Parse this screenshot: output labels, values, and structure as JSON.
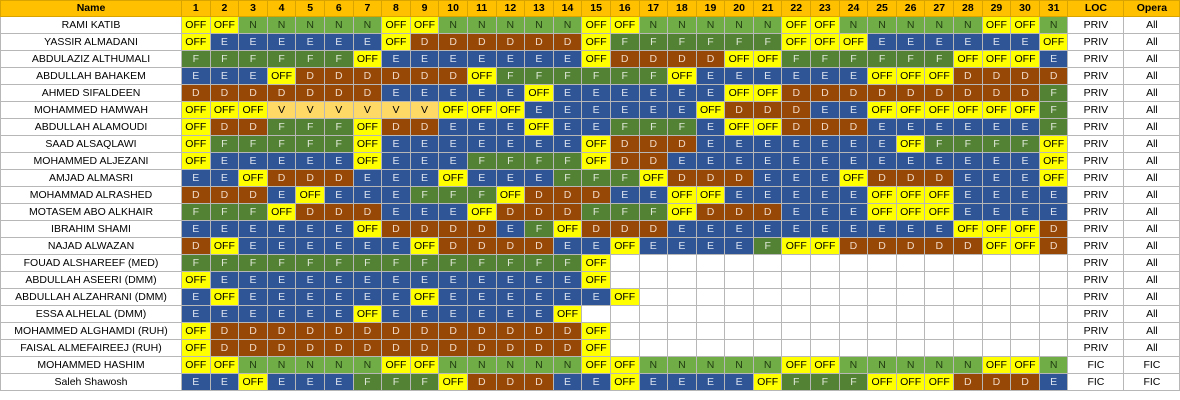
{
  "header": {
    "name": "Name",
    "days": [
      "1",
      "2",
      "3",
      "4",
      "5",
      "6",
      "7",
      "8",
      "9",
      "10",
      "11",
      "12",
      "13",
      "14",
      "15",
      "16",
      "17",
      "18",
      "19",
      "20",
      "21",
      "22",
      "23",
      "24",
      "25",
      "26",
      "27",
      "28",
      "29",
      "30",
      "31"
    ],
    "loc": "LOC",
    "opera": "Opera"
  },
  "colors": {
    "header_bg": "#ffc000",
    "OFF": "#ffff00",
    "E": "#2f5597",
    "F": "#548235",
    "D": "#974706",
    "N": "#70ad47",
    "V": "#ffd966"
  },
  "rows": [
    {
      "name": "RAMI KATIB",
      "shifts": [
        "OFF",
        "OFF",
        "N",
        "N",
        "N",
        "N",
        "N",
        "OFF",
        "OFF",
        "N",
        "N",
        "N",
        "N",
        "N",
        "OFF",
        "OFF",
        "N",
        "N",
        "N",
        "N",
        "N",
        "OFF",
        "OFF",
        "N",
        "N",
        "N",
        "N",
        "N",
        "OFF",
        "OFF",
        "N"
      ],
      "loc": "PRIV",
      "opera": "All"
    },
    {
      "name": "YASSIR ALMADANI",
      "shifts": [
        "OFF",
        "E",
        "E",
        "E",
        "E",
        "E",
        "E",
        "OFF",
        "D",
        "D",
        "D",
        "D",
        "D",
        "D",
        "OFF",
        "F",
        "F",
        "F",
        "F",
        "F",
        "F",
        "OFF",
        "OFF",
        "OFF",
        "E",
        "E",
        "E",
        "E",
        "E",
        "E",
        "OFF"
      ],
      "loc": "PRIV",
      "opera": "All"
    },
    {
      "name": "ABDULAZIZ ALTHUMALI",
      "shifts": [
        "F",
        "F",
        "F",
        "F",
        "F",
        "F",
        "OFF",
        "E",
        "E",
        "E",
        "E",
        "E",
        "E",
        "E",
        "OFF",
        "D",
        "D",
        "D",
        "D",
        "OFF",
        "OFF",
        "F",
        "F",
        "F",
        "F",
        "F",
        "F",
        "OFF",
        "OFF",
        "OFF",
        "E"
      ],
      "loc": "PRIV",
      "opera": "All"
    },
    {
      "name": "ABDULLAH BAHAKEM",
      "shifts": [
        "E",
        "E",
        "E",
        "OFF",
        "D",
        "D",
        "D",
        "D",
        "D",
        "D",
        "OFF",
        "F",
        "F",
        "F",
        "F",
        "F",
        "F",
        "OFF",
        "E",
        "E",
        "E",
        "E",
        "E",
        "E",
        "OFF",
        "OFF",
        "OFF",
        "D",
        "D",
        "D",
        "D"
      ],
      "loc": "PRIV",
      "opera": "All"
    },
    {
      "name": "AHMED SIFALDEEN",
      "shifts": [
        "D",
        "D",
        "D",
        "D",
        "D",
        "D",
        "D",
        "E",
        "E",
        "E",
        "E",
        "E",
        "OFF",
        "E",
        "E",
        "E",
        "E",
        "E",
        "E",
        "OFF",
        "OFF",
        "D",
        "D",
        "D",
        "D",
        "D",
        "D",
        "D",
        "D",
        "D",
        "F"
      ],
      "loc": "PRIV",
      "opera": "All"
    },
    {
      "name": "MOHAMMED HAMWAH",
      "shifts": [
        "OFF",
        "OFF",
        "OFF",
        "V",
        "V",
        "V",
        "V",
        "V",
        "V",
        "OFF",
        "OFF",
        "OFF",
        "E",
        "E",
        "E",
        "E",
        "E",
        "E",
        "OFF",
        "D",
        "D",
        "D",
        "E",
        "E",
        "OFF",
        "OFF",
        "OFF",
        "OFF",
        "OFF",
        "OFF",
        "F"
      ],
      "loc": "PRIV",
      "opera": "All"
    },
    {
      "name": "ABDULLAH ALAMOUDI",
      "shifts": [
        "OFF",
        "D",
        "D",
        "F",
        "F",
        "F",
        "OFF",
        "D",
        "D",
        "E",
        "E",
        "E",
        "OFF",
        "E",
        "E",
        "F",
        "F",
        "F",
        "E",
        "OFF",
        "OFF",
        "D",
        "D",
        "D",
        "E",
        "E",
        "E",
        "E",
        "E",
        "E",
        "F"
      ],
      "loc": "PRIV",
      "opera": "All"
    },
    {
      "name": "SAAD ALSAQLAWI",
      "shifts": [
        "OFF",
        "F",
        "F",
        "F",
        "F",
        "F",
        "OFF",
        "E",
        "E",
        "E",
        "E",
        "E",
        "E",
        "E",
        "OFF",
        "D",
        "D",
        "D",
        "E",
        "E",
        "E",
        "E",
        "E",
        "E",
        "E",
        "OFF",
        "F",
        "F",
        "F",
        "F",
        "OFF"
      ],
      "loc": "PRIV",
      "opera": "All"
    },
    {
      "name": "MOHAMMED ALJEZANI",
      "shifts": [
        "OFF",
        "E",
        "E",
        "E",
        "E",
        "E",
        "OFF",
        "E",
        "E",
        "E",
        "F",
        "F",
        "F",
        "F",
        "OFF",
        "D",
        "D",
        "E",
        "E",
        "E",
        "E",
        "E",
        "E",
        "E",
        "E",
        "E",
        "E",
        "E",
        "E",
        "E",
        "OFF"
      ],
      "loc": "PRIV",
      "opera": "All"
    },
    {
      "name": "AMJAD ALMASRI",
      "shifts": [
        "E",
        "E",
        "OFF",
        "D",
        "D",
        "D",
        "E",
        "E",
        "E",
        "OFF",
        "E",
        "E",
        "E",
        "F",
        "F",
        "F",
        "OFF",
        "D",
        "D",
        "D",
        "E",
        "E",
        "E",
        "OFF",
        "D",
        "D",
        "D",
        "E",
        "E",
        "E",
        "OFF"
      ],
      "loc": "PRIV",
      "opera": "All"
    },
    {
      "name": "MOHAMMAD ALRASHED",
      "shifts": [
        "D",
        "D",
        "D",
        "E",
        "OFF",
        "E",
        "E",
        "E",
        "F",
        "F",
        "F",
        "OFF",
        "D",
        "D",
        "D",
        "E",
        "E",
        "OFF",
        "OFF",
        "E",
        "E",
        "E",
        "E",
        "E",
        "OFF",
        "OFF",
        "OFF",
        "E",
        "E",
        "E",
        "E"
      ],
      "loc": "PRIV",
      "opera": "All"
    },
    {
      "name": "MOTASEM ABO ALKHAIR",
      "shifts": [
        "F",
        "F",
        "F",
        "OFF",
        "D",
        "D",
        "D",
        "E",
        "E",
        "E",
        "OFF",
        "D",
        "D",
        "D",
        "F",
        "F",
        "F",
        "OFF",
        "D",
        "D",
        "D",
        "E",
        "E",
        "E",
        "OFF",
        "OFF",
        "OFF",
        "E",
        "E",
        "E",
        "E"
      ],
      "loc": "PRIV",
      "opera": "All"
    },
    {
      "name": "IBRAHIM SHAMI",
      "shifts": [
        "E",
        "E",
        "E",
        "E",
        "E",
        "E",
        "OFF",
        "D",
        "D",
        "D",
        "D",
        "E",
        "F",
        "OFF",
        "D",
        "D",
        "D",
        "E",
        "E",
        "E",
        "E",
        "E",
        "E",
        "E",
        "E",
        "E",
        "E",
        "OFF",
        "OFF",
        "OFF",
        "D"
      ],
      "loc": "PRIV",
      "opera": "All"
    },
    {
      "name": "NAJAD ALWAZAN",
      "shifts": [
        "D",
        "OFF",
        "E",
        "E",
        "E",
        "E",
        "E",
        "E",
        "OFF",
        "D",
        "D",
        "D",
        "D",
        "E",
        "E",
        "OFF",
        "E",
        "E",
        "E",
        "E",
        "F",
        "OFF",
        "OFF",
        "D",
        "D",
        "D",
        "D",
        "D",
        "OFF",
        "OFF",
        "D"
      ],
      "loc": "PRIV",
      "opera": "All"
    },
    {
      "name": "FOUAD ALSHAREEF (MED)",
      "shifts": [
        "F",
        "F",
        "F",
        "F",
        "F",
        "F",
        "F",
        "F",
        "F",
        "F",
        "F",
        "F",
        "F",
        "F",
        "OFF",
        "",
        "",
        "",
        "",
        "",
        "",
        "",
        "",
        "",
        "",
        "",
        "",
        "",
        "",
        "",
        ""
      ],
      "loc": "PRIV",
      "opera": "All"
    },
    {
      "name": "ABDULLAH ASEERI (DMM)",
      "shifts": [
        "OFF",
        "E",
        "E",
        "E",
        "E",
        "E",
        "E",
        "E",
        "E",
        "E",
        "E",
        "E",
        "E",
        "E",
        "OFF",
        "",
        "",
        "",
        "",
        "",
        "",
        "",
        "",
        "",
        "",
        "",
        "",
        "",
        "",
        "",
        ""
      ],
      "loc": "PRIV",
      "opera": "All"
    },
    {
      "name": "ABDULLAH ALZAHRANI (DMM)",
      "shifts": [
        "E",
        "OFF",
        "E",
        "E",
        "E",
        "E",
        "E",
        "E",
        "OFF",
        "E",
        "E",
        "E",
        "E",
        "E",
        "E",
        "OFF",
        "",
        "",
        "",
        "",
        "",
        "",
        "",
        "",
        "",
        "",
        "",
        "",
        "",
        "",
        ""
      ],
      "loc": "PRIV",
      "opera": "All"
    },
    {
      "name": "ESSA ALHELAL (DMM)",
      "shifts": [
        "E",
        "E",
        "E",
        "E",
        "E",
        "E",
        "OFF",
        "E",
        "E",
        "E",
        "E",
        "E",
        "E",
        "OFF",
        "",
        "",
        "",
        "",
        "",
        "",
        "",
        "",
        "",
        "",
        "",
        "",
        "",
        "",
        "",
        "",
        ""
      ],
      "loc": "PRIV",
      "opera": "All"
    },
    {
      "name": "MOHAMMED ALGHAMDI (RUH)",
      "shifts": [
        "OFF",
        "D",
        "D",
        "D",
        "D",
        "D",
        "D",
        "D",
        "D",
        "D",
        "D",
        "D",
        "D",
        "D",
        "OFF",
        "",
        "",
        "",
        "",
        "",
        "",
        "",
        "",
        "",
        "",
        "",
        "",
        "",
        "",
        "",
        ""
      ],
      "loc": "PRIV",
      "opera": "All"
    },
    {
      "name": "FAISAL ALMEFAIREEJ (RUH)",
      "shifts": [
        "OFF",
        "D",
        "D",
        "D",
        "D",
        "D",
        "D",
        "D",
        "D",
        "D",
        "D",
        "D",
        "D",
        "D",
        "OFF",
        "",
        "",
        "",
        "",
        "",
        "",
        "",
        "",
        "",
        "",
        "",
        "",
        "",
        "",
        "",
        ""
      ],
      "loc": "PRIV",
      "opera": "All"
    },
    {
      "name": "MOHAMMED HASHIM",
      "shifts": [
        "OFF",
        "OFF",
        "N",
        "N",
        "N",
        "N",
        "N",
        "OFF",
        "OFF",
        "N",
        "N",
        "N",
        "N",
        "N",
        "OFF",
        "OFF",
        "N",
        "N",
        "N",
        "N",
        "N",
        "OFF",
        "OFF",
        "N",
        "N",
        "N",
        "N",
        "N",
        "OFF",
        "OFF",
        "N"
      ],
      "loc": "FIC",
      "opera": "FIC"
    },
    {
      "name": "Saleh Shawosh",
      "shifts": [
        "E",
        "E",
        "OFF",
        "E",
        "E",
        "E",
        "F",
        "F",
        "F",
        "OFF",
        "D",
        "D",
        "D",
        "E",
        "E",
        "OFF",
        "E",
        "E",
        "E",
        "E",
        "OFF",
        "F",
        "F",
        "F",
        "OFF",
        "OFF",
        "OFF",
        "D",
        "D",
        "D",
        "E"
      ],
      "loc": "FIC",
      "opera": "FIC"
    }
  ]
}
